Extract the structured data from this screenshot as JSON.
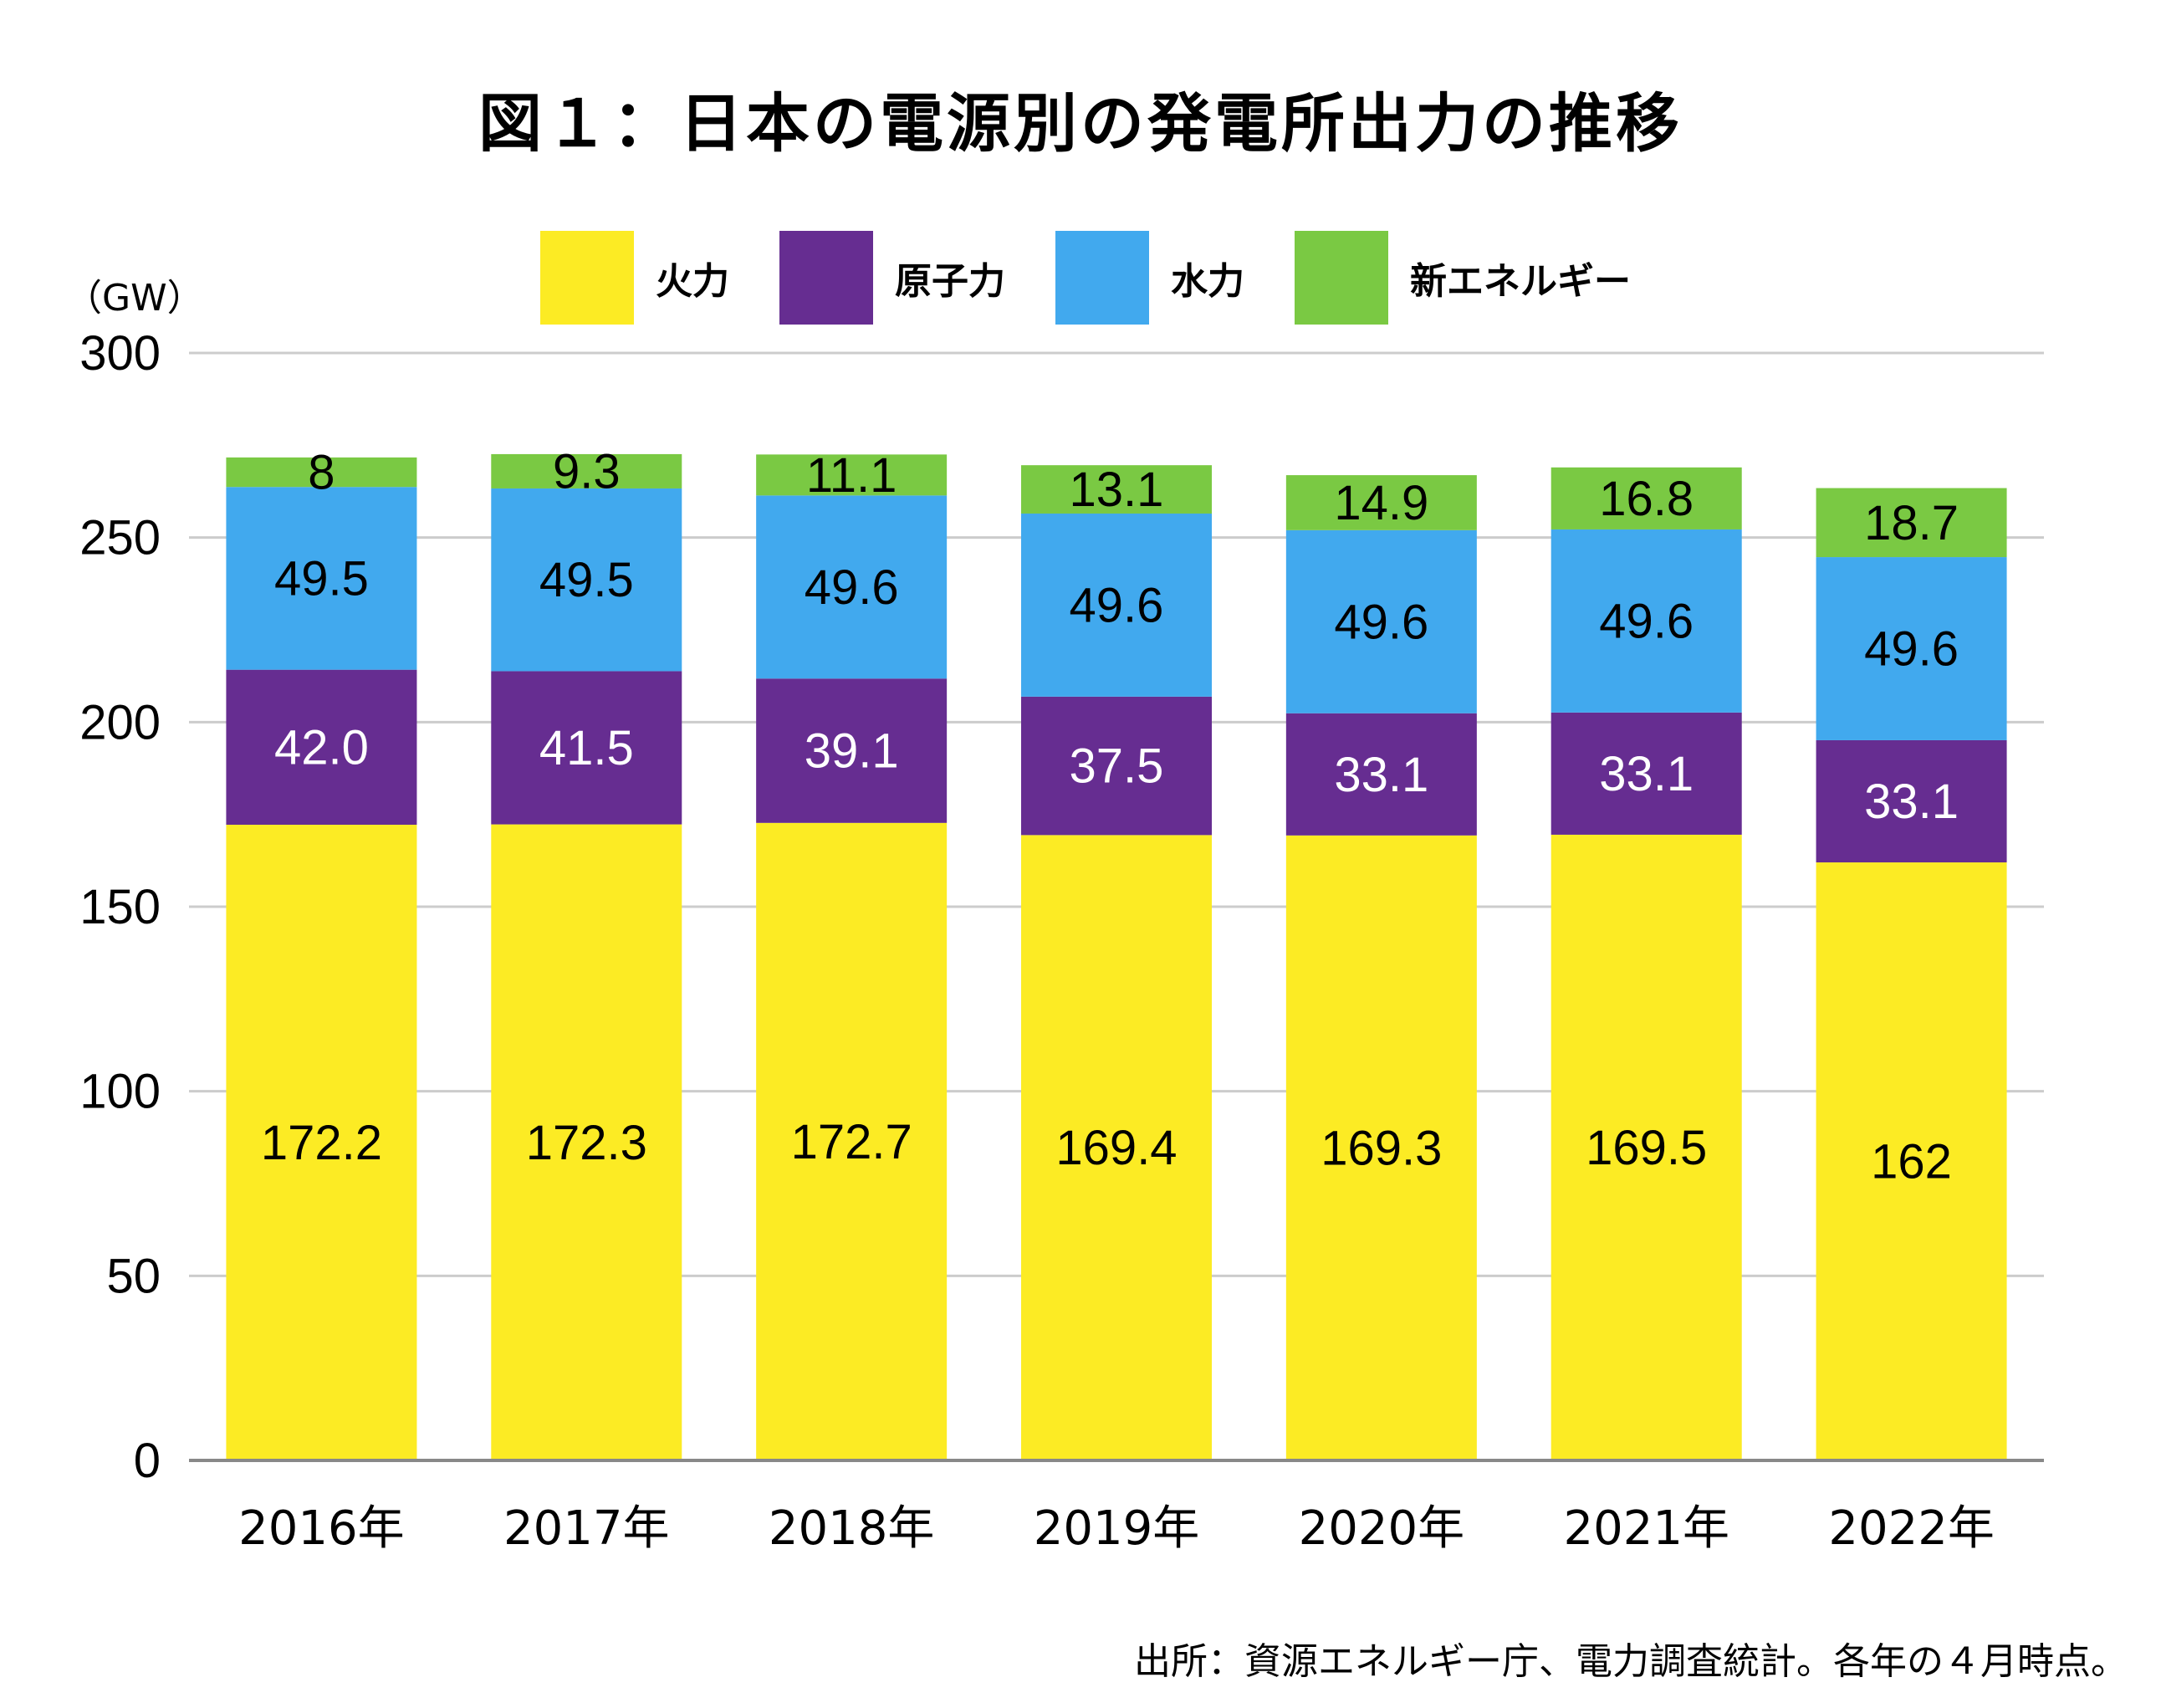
{
  "title": "図１：日本の電源別の発電所出力の推移",
  "unit_label": "（GW）",
  "source": "出所：資源エネルギー庁、電力調査統計。各年の４月時点。",
  "colors": {
    "fire": "#FCEB24",
    "nuclear": "#662D91",
    "hydro": "#41A9EE",
    "renewable": "#7AC943",
    "grid": "#cccccc",
    "axis": "#888888"
  },
  "legend": [
    {
      "label": "火力",
      "color": "#FCEB24"
    },
    {
      "label": "原子力",
      "color": "#662D91"
    },
    {
      "label": "水力",
      "color": "#41A9EE"
    },
    {
      "label": "新エネルギー",
      "color": "#7AC943"
    }
  ],
  "chart_data": {
    "type": "bar",
    "stacked": true,
    "title": "図１：日本の電源別の発電所出力の推移",
    "ylabel": "（GW）",
    "ylim": [
      0,
      300
    ],
    "yticks": [
      0,
      50,
      100,
      150,
      200,
      250,
      300
    ],
    "grid": true,
    "legend_position": "top",
    "categories": [
      "2016年",
      "2017年",
      "2018年",
      "2019年",
      "2020年",
      "2021年",
      "2022年"
    ],
    "series": [
      {
        "name": "火力",
        "color": "#FCEB24",
        "label_color": "#000000",
        "values": [
          172.2,
          172.3,
          172.7,
          169.4,
          169.3,
          169.5,
          162
        ],
        "labels": [
          "172.2",
          "172.3",
          "172.7",
          "169.4",
          "169.3",
          "169.5",
          "162"
        ]
      },
      {
        "name": "原子力",
        "color": "#662D91",
        "label_color": "#ffffff",
        "values": [
          42.0,
          41.5,
          39.1,
          37.5,
          33.1,
          33.1,
          33.1
        ],
        "labels": [
          "42.0",
          "41.5",
          "39.1",
          "37.5",
          "33.1",
          "33.1",
          "33.1"
        ]
      },
      {
        "name": "水力",
        "color": "#41A9EE",
        "label_color": "#000000",
        "values": [
          49.5,
          49.5,
          49.6,
          49.6,
          49.6,
          49.6,
          49.6
        ],
        "labels": [
          "49.5",
          "49.5",
          "49.6",
          "49.6",
          "49.6",
          "49.6",
          "49.6"
        ]
      },
      {
        "name": "新エネルギー",
        "color": "#7AC943",
        "label_color": "#000000",
        "values": [
          8,
          9.3,
          11.1,
          13.1,
          14.9,
          16.8,
          18.7
        ],
        "labels": [
          "8",
          "9.3",
          "11.1",
          "13.1",
          "14.9",
          "16.8",
          "18.7"
        ]
      }
    ]
  }
}
